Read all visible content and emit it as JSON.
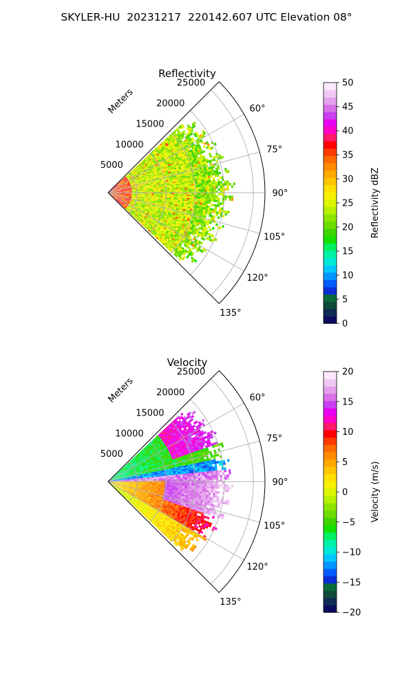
{
  "figure": {
    "title": "SKYLER-HU  20231217  220142.607 UTC Elevation 08°"
  },
  "chart_data": [
    {
      "type": "heatmap",
      "subtype": "polar-sector-ppi",
      "title": "Reflectivity",
      "radial_label": "Meters",
      "radial_ticks": [
        "5000",
        "10000",
        "15000",
        "20000",
        "25000"
      ],
      "radial_max": 27000,
      "angle_range_deg": [
        45,
        135
      ],
      "angle_ticks": [
        "60°",
        "75°",
        "90°",
        "105°",
        "120°",
        "135°"
      ],
      "grid": true,
      "colorbar": {
        "label": "Reflectivity dBZ",
        "min": 0,
        "max": 50,
        "ticks": [
          "0",
          "5",
          "10",
          "15",
          "20",
          "25",
          "30",
          "35",
          "40",
          "45",
          "50"
        ],
        "colors": [
          "#0b0b5e",
          "#0f2a55",
          "#0e4a3a",
          "#0a6a3a",
          "#0b2dd6",
          "#005cff",
          "#0095ff",
          "#00c8ff",
          "#00e8d8",
          "#00f2a8",
          "#00f060",
          "#16e000",
          "#3fd400",
          "#6bdc00",
          "#8ee600",
          "#b8f000",
          "#dcf500",
          "#f7f000",
          "#ffe000",
          "#ffc400",
          "#ffa800",
          "#ff8c00",
          "#ff6a00",
          "#ff3a00",
          "#ff0000",
          "#ff1a6a",
          "#ff00c8",
          "#e800f0",
          "#c840f0",
          "#d870e8",
          "#e4a0ec",
          "#f0c8f4",
          "#fbe8fb"
        ]
      },
      "field_summary": "Broad yellow-green field (20–28 dBZ) with red/orange speckles up to ~35 dBZ near the radar, echoes to ~21 km range"
    },
    {
      "type": "heatmap",
      "subtype": "polar-sector-ppi",
      "title": "Velocity",
      "radial_label": "Meters",
      "radial_ticks": [
        "5000",
        "10000",
        "15000",
        "20000",
        "25000"
      ],
      "radial_max": 27000,
      "angle_range_deg": [
        45,
        135
      ],
      "angle_ticks": [
        "60°",
        "75°",
        "90°",
        "105°",
        "120°",
        "135°"
      ],
      "grid": true,
      "colorbar": {
        "label": "Velocity (m/s)",
        "min": -20,
        "max": 20,
        "ticks": [
          "−20",
          "−15",
          "−10",
          "−5",
          "0",
          "5",
          "10",
          "15",
          "20"
        ],
        "colors": [
          "#0b0b5e",
          "#0f2a55",
          "#0e4a3a",
          "#0a6a3a",
          "#0b2dd6",
          "#005cff",
          "#0095ff",
          "#00c8ff",
          "#00e8d8",
          "#00f2a8",
          "#00f060",
          "#16e000",
          "#3fd400",
          "#6bdc00",
          "#8ee600",
          "#b8f000",
          "#dcf500",
          "#f7f000",
          "#ffe000",
          "#ffc400",
          "#ffa800",
          "#ff8c00",
          "#ff6a00",
          "#ff3a00",
          "#ff0000",
          "#ff1a6a",
          "#ff00c8",
          "#e800f0",
          "#c840f0",
          "#d870e8",
          "#e4a0ec",
          "#f0c8f4",
          "#fbe8fb"
        ]
      },
      "field_summary": "Northern half (60–90°) negative/green-cyan with red-magenta outer rim; southern half (90–130°) positive yellow-orange with red-magenta core near 95–105°"
    }
  ]
}
